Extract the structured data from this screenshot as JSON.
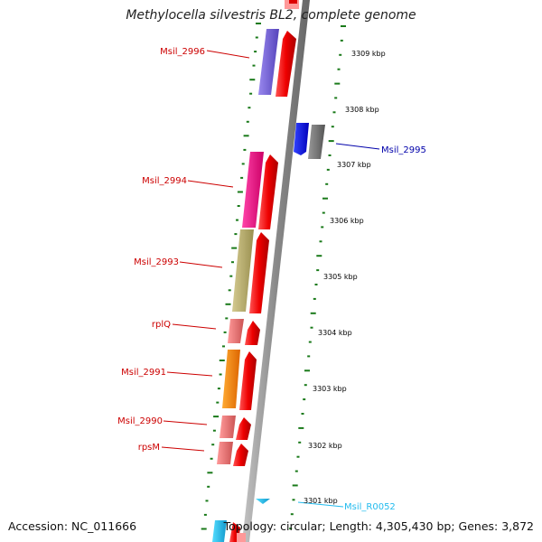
{
  "header": {
    "title": "Methylocella silvestris BL2, complete genome"
  },
  "footer": {
    "accession": "Accession: NC_011666",
    "topology": "Topology: circular; Length: 4,305,430 bp; Genes: 3,872"
  },
  "ruler": {
    "ticks": [
      "3309 kbp",
      "3308 kbp",
      "3307 kbp",
      "3306 kbp",
      "3305 kbp",
      "3304 kbp",
      "3303 kbp",
      "3302 kbp",
      "3301 kbp"
    ]
  },
  "genes": {
    "msil_2996": "Msil_2996",
    "msil_2995": "Msil_2995",
    "msil_2994": "Msil_2994",
    "msil_2993": "Msil_2993",
    "rplq": "rplQ",
    "msil_2991": "Msil_2991",
    "msil_2990": "Msil_2990",
    "rpsm": "rpsM",
    "msil_r0052": "Msil_R0052"
  },
  "colors": {
    "forward_label": "#cc0000",
    "reverse_label": "#0000aa",
    "rna_label": "#22bbee",
    "ruler_dots": "#1a7a1a",
    "backbone": "#8c8c8c",
    "msil_2996": "#7766dd",
    "msil_2995": "#0000ee",
    "msil_2995_partner": "#777777",
    "msil_2994": "#ee1188",
    "msil_2993": "#bbb070",
    "rplq": "#ee7777",
    "msil_2991": "#ff8800",
    "msil_2990": "#ee7777",
    "rpsm": "#ee7777",
    "cds_track": "#ee0000",
    "msil_r0052": "#22bbee"
  }
}
